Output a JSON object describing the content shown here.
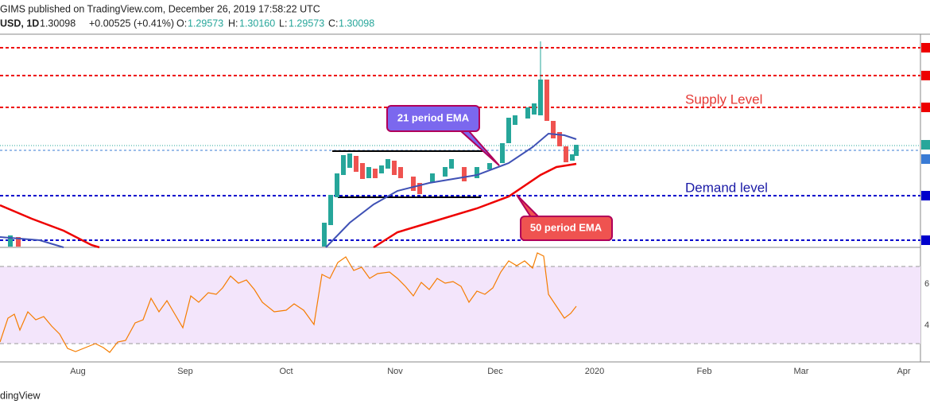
{
  "header": {
    "publisher": "GIMS published on TradingView.com, December 26, 2019 17:58:22 UTC",
    "symbol": "USD, 1D",
    "last": "1.30098",
    "change": "+0.00525 (+0.41%)",
    "open_label": "O:",
    "open": "1.29573",
    "high_label": "H:",
    "high": "1.30160",
    "low_label": "L:",
    "low": "1.29573",
    "close_label": "C:",
    "close": "1.30098"
  },
  "annotations": {
    "supply": "Supply Level",
    "demand": "Demand level",
    "ema21": "21 period EMA",
    "ema50": "50 period EMA"
  },
  "time_axis": [
    "Aug",
    "Sep",
    "Oct",
    "Nov",
    "Dec",
    "2020",
    "Feb",
    "Mar",
    "Apr"
  ],
  "rsi_axis": [
    "6",
    "4"
  ],
  "footer": "dingView"
}
